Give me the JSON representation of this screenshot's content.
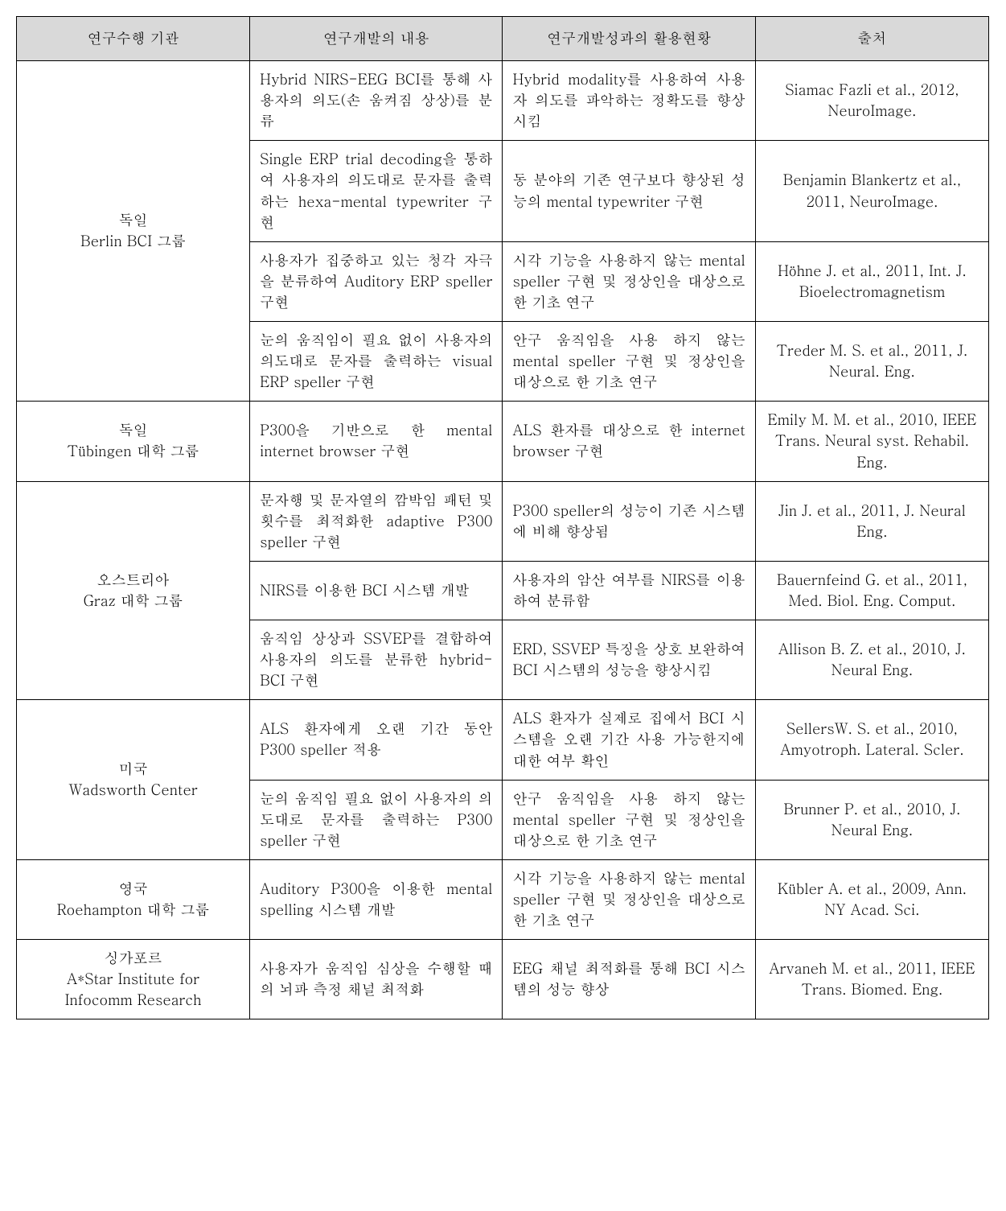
{
  "headers": {
    "h1": "연구수행 기관",
    "h2": "연구개발의 내용",
    "h3": "연구개발성과의 활용현황",
    "h4": "출처"
  },
  "groups": [
    {
      "institution_l1": "독일",
      "institution_l2": "Berlin BCI 그룹",
      "rows": [
        {
          "content": "Hybrid NIRS-EEG BCI를 통해 사용자의 의도(손 움켜짐 상상)를 분류",
          "usage": "Hybrid modality를 사용하여 사용자 의도를 파악하는 정확도를 향상시킴",
          "source": "Siamac Fazli et al., 2012, NeuroImage."
        },
        {
          "content": "Single ERP trial decoding을 통하여 사용자의 의도대로 문자를 출력하는 hexa-mental typewriter 구현",
          "usage": "동 분야의 기존 연구보다 향상된 성능의 mental typewriter 구현",
          "source": "Benjamin Blankertz et al., 2011, NeuroImage."
        },
        {
          "content": "사용자가 집중하고 있는 청각 자극을 분류하여 Auditory ERP speller 구현",
          "usage": "시각 기능을 사용하지 않는 mental speller 구현 및 정상인을 대상으로 한 기초 연구",
          "source": "Höhne J. et al., 2011, Int. J. Bioelectromagnetism"
        },
        {
          "content": "눈의 움직임이 필요 없이 사용자의 의도대로 문자를 출력하는 visual ERP speller 구현",
          "usage": "안구 움직임을 사용 하지 않는 mental speller 구현 및 정상인을 대상으로 한 기초 연구",
          "source": "Treder M. S. et al., 2011, J. Neural. Eng."
        }
      ]
    },
    {
      "institution_l1": "독일",
      "institution_l2": "Tübingen 대학 그룹",
      "rows": [
        {
          "content": "P300을 기반으로 한 mental internet browser 구현",
          "usage": "ALS 환자를 대상으로 한 internet browser 구현",
          "source": "Emily M. M. et al., 2010, IEEE Trans. Neural syst. Rehabil. Eng."
        }
      ]
    },
    {
      "institution_l1": "오스트리아",
      "institution_l2": "Graz 대학 그룹",
      "rows": [
        {
          "content": "문자행 및 문자열의 깜박임 패턴 및 횟수를 최적화한 adaptive P300 speller 구현",
          "usage": "P300 speller의 성능이 기존 시스템에 비해 향상됨",
          "source": "Jin J. et al., 2011, J. Neural Eng."
        },
        {
          "content": "NIRS를 이용한 BCI 시스템 개발",
          "usage": "사용자의 암산 여부를 NIRS를 이용하여 분류함",
          "source": "Bauernfeind G. et al., 2011, Med. Biol. Eng. Comput."
        },
        {
          "content": "움직임 상상과 SSVEP를 결합하여 사용자의 의도를 분류한 hybrid-BCI 구현",
          "usage": "ERD, SSVEP 특징을 상호 보완하여 BCI 시스템의 성능을 향상시킴",
          "source": "Allison B. Z. et al., 2010, J. Neural Eng."
        }
      ]
    },
    {
      "institution_l1": "미국",
      "institution_l2": "Wadsworth Center",
      "rows": [
        {
          "content": "ALS 환자에게 오랜 기간 동안 P300 speller 적용",
          "usage": "ALS 환자가 실제로 집에서 BCI 시스템을 오랜 기간 사용 가능한지에 대한 여부 확인",
          "source": "SellersW. S. et al., 2010, Amyotroph. Lateral. Scler."
        },
        {
          "content": "눈의 움직임 필요 없이 사용자의 의도대로 문자를 출력하는 P300 speller 구현",
          "usage": "안구 움직임을 사용 하지 않는 mental speller 구현 및 정상인을 대상으로 한 기초 연구",
          "source": "Brunner P. et al., 2010, J. Neural Eng."
        }
      ]
    },
    {
      "institution_l1": "영국",
      "institution_l2": "Roehampton 대학 그룹",
      "rows": [
        {
          "content": "Auditory P300을 이용한 mental spelling 시스템 개발",
          "usage": "시각 기능을 사용하지 않는 mental speller 구현 및 정상인을 대상으로 한 기초 연구",
          "source": "Kübler A. et al., 2009, Ann. NY Acad. Sci."
        }
      ]
    },
    {
      "institution_l1": "싱가포르",
      "institution_l2": "A*Star Institute for",
      "institution_l3": "Infocomm Research",
      "rows": [
        {
          "content": "사용자가 움직임 심상을 수행할 때의 뇌파 측정 채널 최적화",
          "usage": "EEG 채널 최적화를 통해 BCI 시스템의 성능 향상",
          "source": "Arvaneh M. et al., 2011, IEEE Trans. Biomed. Eng."
        }
      ]
    }
  ]
}
